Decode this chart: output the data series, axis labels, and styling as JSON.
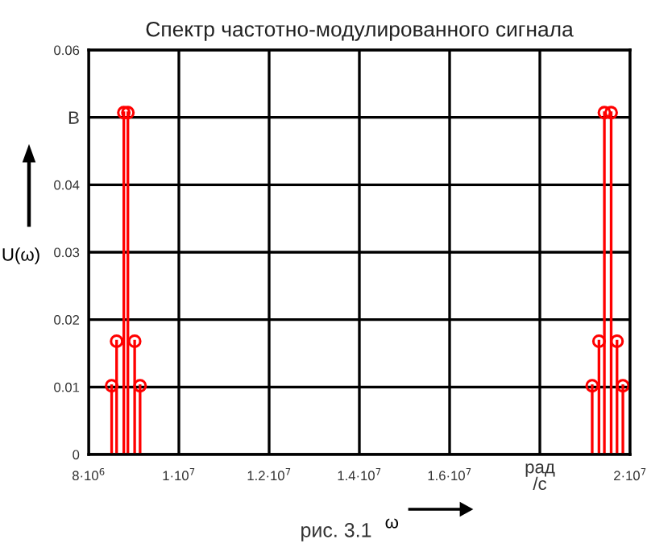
{
  "chart_data": {
    "type": "lollipop",
    "title": "Спектр частотно-модулированного сигнала",
    "xlabel": "ω",
    "ylabel": "U(ω)",
    "x": [
      8510000,
      8620000,
      8780000,
      8870000,
      9020000,
      9140000,
      19160000,
      19310000,
      19430000,
      19580000,
      19710000,
      19840000
    ],
    "series": [
      {
        "color": "#ff0000",
        "values": [
          0.0102,
          0.0168,
          0.0507,
          0.0507,
          0.0168,
          0.0102,
          0.0102,
          0.0168,
          0.0507,
          0.0507,
          0.0168,
          0.0102
        ]
      }
    ],
    "xlim": [
      8000000,
      20000000
    ],
    "xticks": [
      {
        "value": 8000000,
        "label": "8·10$^{6}$"
      },
      {
        "value": 10000000,
        "label": "1·10$^{7}$"
      },
      {
        "value": 12000000,
        "label": "1.2·10$^{7}$"
      },
      {
        "value": 14000000,
        "label": "1.4·10$^{7}$"
      },
      {
        "value": 16000000,
        "label": "1.6·10$^{7}$"
      },
      {
        "value": 18000000,
        "label": "рад\n/с"
      },
      {
        "value": 20000000,
        "label": "2·10$^{7}$"
      }
    ],
    "ylim": [
      0,
      0.06
    ],
    "yticks": [
      0,
      0.01,
      0.02,
      0.03,
      0.04,
      {
        "value": 0.05,
        "label": "В"
      },
      0.06
    ],
    "grid": true,
    "marker": "circle",
    "line_style": "solid",
    "annotations": [
      "рис. 3.1"
    ]
  }
}
